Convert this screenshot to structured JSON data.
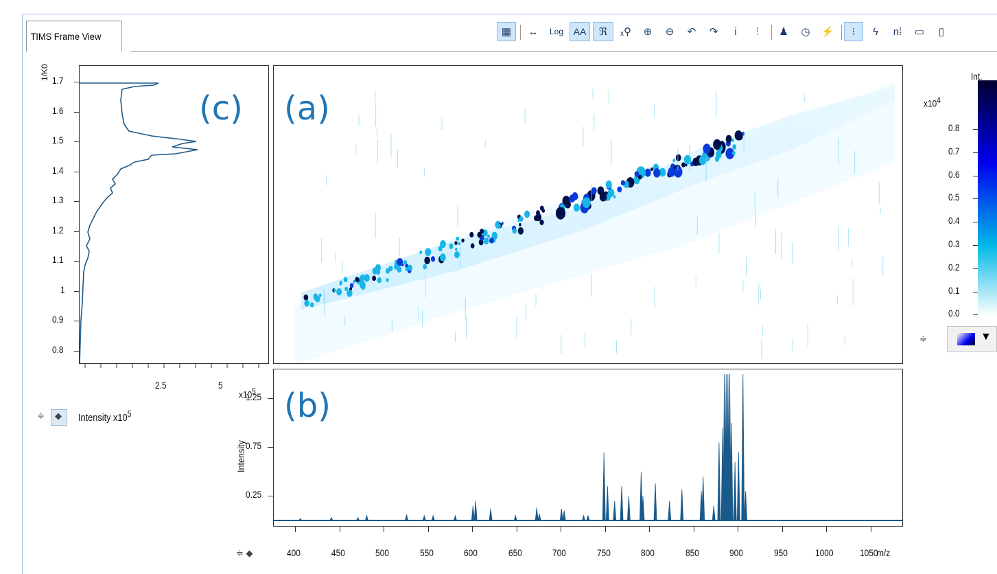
{
  "window": {
    "tab_label": "TIMS Frame View"
  },
  "toolbar": {
    "items": [
      {
        "name": "overview-map-icon",
        "glyph": "▦",
        "active": true
      },
      {
        "name": "expand-horizontal-icon",
        "glyph": "↔",
        "active": false
      },
      {
        "name": "log-scale-button",
        "glyph": "Log",
        "active": false
      },
      {
        "name": "antialias-button",
        "glyph": "AA",
        "active": true
      },
      {
        "name": "zoom-people-icon",
        "glyph": "ℜ",
        "active": true
      },
      {
        "name": "zoom-x-icon",
        "glyph": "ₓ⚲",
        "active": false
      },
      {
        "name": "zoom-in-icon",
        "glyph": "⊕",
        "active": false
      },
      {
        "name": "zoom-out-icon",
        "glyph": "⊖",
        "active": false
      },
      {
        "name": "undo-icon",
        "glyph": "↶",
        "active": false
      },
      {
        "name": "redo-icon",
        "glyph": "↷",
        "active": false
      },
      {
        "name": "peak-info-icon",
        "glyph": "i",
        "active": false
      },
      {
        "name": "peak-label-icon",
        "glyph": "⫶",
        "active": false
      },
      {
        "name": "person-icon",
        "glyph": "♟",
        "active": false
      },
      {
        "name": "clock-icon",
        "glyph": "◷",
        "active": false
      },
      {
        "name": "spectrum-flash-icon",
        "glyph": "⚡",
        "active": false
      },
      {
        "name": "cursor-info-icon",
        "glyph": "⁝",
        "active": true
      },
      {
        "name": "lightning-icon",
        "glyph": "ϟ",
        "active": false
      },
      {
        "name": "numeric-labels-icon",
        "glyph": "n⁞",
        "active": false
      },
      {
        "name": "minimize-icon",
        "glyph": "▭",
        "active": false
      },
      {
        "name": "maximize-icon",
        "glyph": "▯",
        "active": false
      }
    ]
  },
  "mobilogram": {
    "yaxis_label": "1/K0",
    "yticks": [
      "1.7",
      "1.6",
      "1.5",
      "1.4",
      "1.3",
      "1.2",
      "1.1",
      "1",
      "0.9",
      "0.8"
    ],
    "xticks": [
      "2.5",
      "5"
    ],
    "xaxis_label": "Intensity x10",
    "xaxis_exp": "5",
    "annotation": "(c)"
  },
  "heatmap": {
    "annotation": "(a)"
  },
  "colorbar": {
    "title": "Int.",
    "multiplier": "x10",
    "multiplier_exp": "4",
    "ticks": [
      "0.8",
      "0.7",
      "0.6",
      "0.5",
      "0.4",
      "0.3",
      "0.2",
      "0.1",
      "0.0"
    ],
    "colors": [
      "#ffffff",
      "#00b8e6",
      "#0000ee",
      "#000030"
    ]
  },
  "spectrum": {
    "yaxis_label": "Intensity",
    "multiplier": "x10",
    "multiplier_exp": "5",
    "yticks": [
      "1.25",
      "0.75",
      "0.25"
    ],
    "xticks": [
      "400",
      "450",
      "500",
      "550",
      "600",
      "650",
      "700",
      "750",
      "800",
      "850",
      "900",
      "950",
      "1000",
      "1050"
    ],
    "xaxis_unit": "m/z",
    "annotation": "(b)",
    "line_color": "#1a5a8a"
  },
  "chart_data": {
    "type": "line",
    "x": [
      405,
      440,
      470,
      480,
      525,
      545,
      555,
      580,
      600,
      603,
      620,
      648,
      672,
      675,
      700,
      703,
      725,
      730,
      748,
      752,
      760,
      768,
      776,
      790,
      792,
      806,
      822,
      836,
      858,
      860,
      872,
      878,
      882,
      884,
      886,
      888,
      890,
      892,
      896,
      900,
      905,
      908
    ],
    "y": [
      0.02,
      0.03,
      0.03,
      0.05,
      0.06,
      0.05,
      0.05,
      0.05,
      0.15,
      0.2,
      0.12,
      0.05,
      0.13,
      0.07,
      0.12,
      0.1,
      0.05,
      0.05,
      0.7,
      0.35,
      0.2,
      0.35,
      0.25,
      0.5,
      0.25,
      0.38,
      0.2,
      0.32,
      0.3,
      0.45,
      0.15,
      0.8,
      0.95,
      1.5,
      1.5,
      1.5,
      1.5,
      1.0,
      0.6,
      0.7,
      1.5,
      0.3
    ],
    "xlabel": "m/z",
    "ylabel": "Intensity",
    "xlim": [
      375,
      1085
    ],
    "ylim": [
      0.0,
      1.55
    ]
  },
  "bottom_spinner": {
    "glyph": "≑ ◆"
  }
}
